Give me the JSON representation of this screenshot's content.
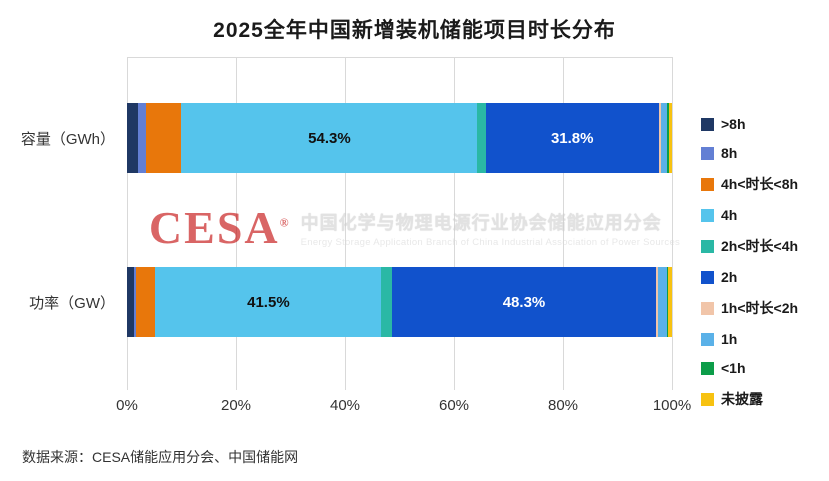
{
  "title": "2025全年中国新增装机储能项目时长分布",
  "source": "数据来源：CESA储能应用分会、中国储能网",
  "watermark": {
    "logo": "CESA",
    "reg": "®",
    "cn": "中国化学与物理电源行业协会储能应用分会",
    "en": "Energy Storage Application Branch of China Industrial Association of Power Sources"
  },
  "chart_data": {
    "type": "bar",
    "orientation": "horizontal",
    "stacked": true,
    "grid": true,
    "legend_position": "right",
    "xlim": [
      0,
      100
    ],
    "x_ticks": [
      "0%",
      "20%",
      "40%",
      "60%",
      "80%",
      "100%"
    ],
    "categories": [
      "容量（GWh）",
      "功率（GW）"
    ],
    "legend": [
      {
        "label": ">8h",
        "color": "#1F3864"
      },
      {
        "label": "8h",
        "color": "#637FD4"
      },
      {
        "label": "4h<时长<8h",
        "color": "#E8770B"
      },
      {
        "label": "4h",
        "color": "#55C4EC"
      },
      {
        "label": "2h<时长<4h",
        "color": "#2AB8A5"
      },
      {
        "label": "2h",
        "color": "#1152CC"
      },
      {
        "label": "1h<时长<2h",
        "color": "#F1C5A9"
      },
      {
        "label": "1h",
        "color": "#5AB1E8"
      },
      {
        "label": "<1h",
        "color": "#0C9D49"
      },
      {
        "label": "未披露",
        "color": "#F7C211"
      }
    ],
    "series": [
      {
        "name": "容量（GWh）",
        "values": [
          2.0,
          1.5,
          6.5,
          54.3,
          1.5,
          31.8,
          0.3,
          1.2,
          0.3,
          0.6
        ]
      },
      {
        "name": "功率（GW）",
        "values": [
          1.2,
          0.5,
          3.5,
          41.5,
          2.0,
          48.3,
          0.5,
          1.5,
          0.3,
          0.7
        ]
      }
    ],
    "label_threshold": 20
  }
}
